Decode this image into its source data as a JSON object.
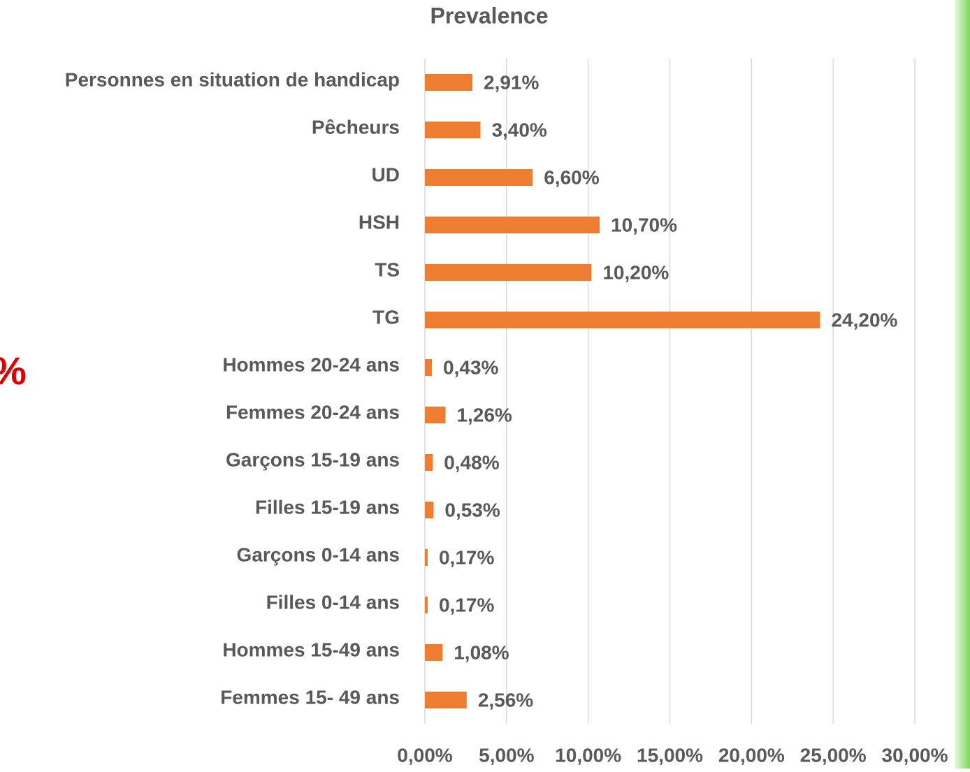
{
  "chart_data": {
    "type": "barh",
    "title": "Prevalence",
    "annotation": "%",
    "categories": [
      "Personnes en situation de handicap",
      "Pêcheurs",
      "UD",
      "HSH",
      "TS",
      "TG",
      "Hommes 20-24 ans",
      "Femmes 20-24 ans",
      "Garçons 15-19 ans",
      "Filles 15-19 ans",
      "Garçons 0-14 ans",
      "Filles 0-14 ans",
      "Hommes 15-49 ans",
      "Femmes 15- 49 ans"
    ],
    "values": [
      2.91,
      3.4,
      6.6,
      10.7,
      10.2,
      24.2,
      0.43,
      1.26,
      0.48,
      0.53,
      0.17,
      0.17,
      1.08,
      2.56
    ],
    "value_labels": [
      "2,91%",
      "3,40%",
      "6,60%",
      "10,70%",
      "10,20%",
      "24,20%",
      "0,43%",
      "1,26%",
      "0,48%",
      "0,53%",
      "0,17%",
      "0,17%",
      "1,08%",
      "2,56%"
    ],
    "color": "#ed7d31",
    "xlim": [
      0,
      30
    ],
    "xticks": [
      {
        "value": 0,
        "label": "0,00%"
      },
      {
        "value": 5,
        "label": "5,00%"
      },
      {
        "value": 10,
        "label": "10,00%"
      },
      {
        "value": 15,
        "label": "15,00%"
      },
      {
        "value": 20,
        "label": "20,00%"
      },
      {
        "value": 25,
        "label": "25,00%"
      },
      {
        "value": 30,
        "label": "30,00%"
      }
    ],
    "grid": true
  }
}
